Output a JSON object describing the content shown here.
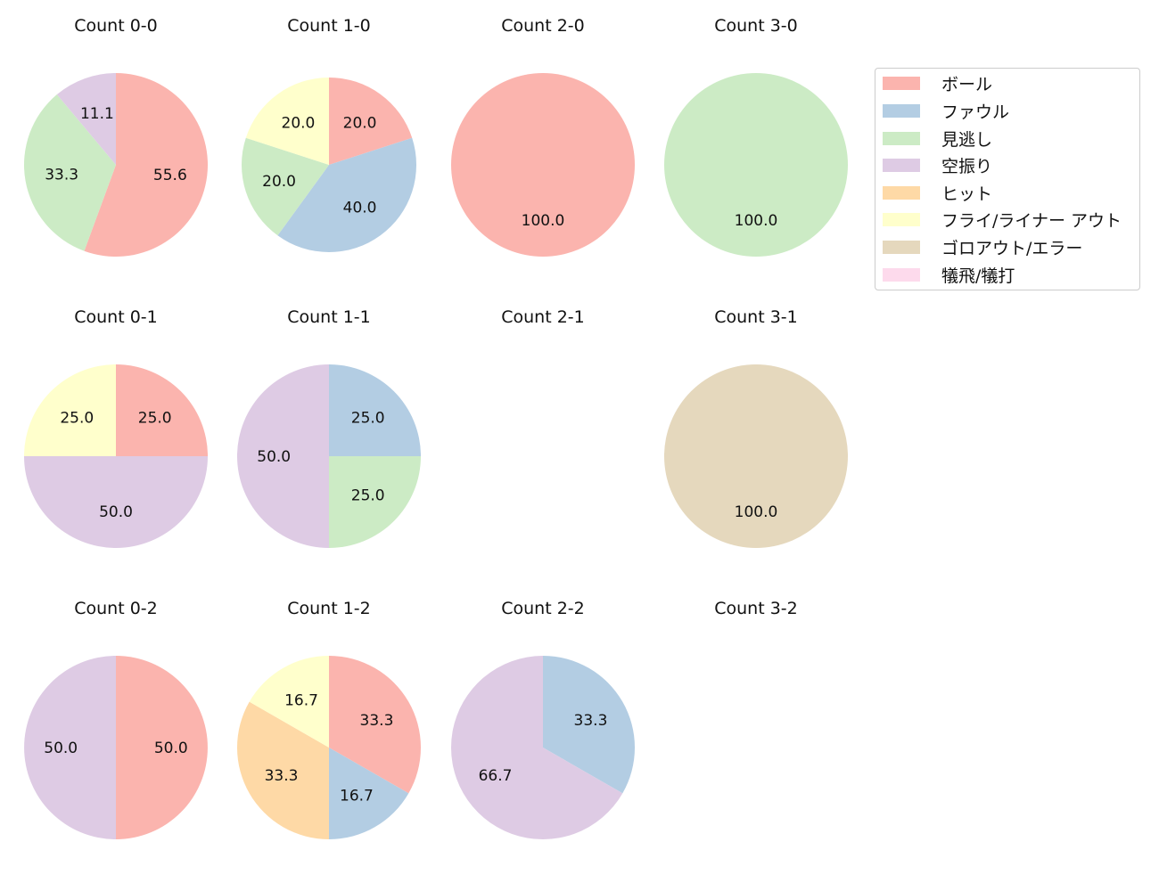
{
  "chart_data": {
    "type": "pie",
    "legend": {
      "position": "upper right",
      "entries": [
        {
          "label": "ボール",
          "color": "#fbb4ae"
        },
        {
          "label": "ファウル",
          "color": "#b3cde3"
        },
        {
          "label": "見逃し",
          "color": "#ccebc5"
        },
        {
          "label": "空振り",
          "color": "#decbe4"
        },
        {
          "label": "ヒット",
          "color": "#fed9a6"
        },
        {
          "label": "フライ/ライナー アウト",
          "color": "#ffffcc"
        },
        {
          "label": "ゴロアウト/エラー",
          "color": "#e5d8bd"
        },
        {
          "label": "犠飛/犠打",
          "color": "#fddaec"
        }
      ]
    },
    "charts": [
      {
        "title": "Count 0-0",
        "slices": [
          {
            "label": "ボール",
            "value": 55.6
          },
          {
            "label": "見逃し",
            "value": 33.3
          },
          {
            "label": "空振り",
            "value": 11.1
          }
        ]
      },
      {
        "title": "Count 1-0",
        "slices": [
          {
            "label": "ボール",
            "value": 20.0
          },
          {
            "label": "ファウル",
            "value": 40.0
          },
          {
            "label": "見逃し",
            "value": 20.0
          },
          {
            "label": "フライ/ライナー アウト",
            "value": 20.0
          }
        ]
      },
      {
        "title": "Count 2-0",
        "slices": [
          {
            "label": "ボール",
            "value": 100.0
          }
        ]
      },
      {
        "title": "Count 3-0",
        "slices": [
          {
            "label": "見逃し",
            "value": 100.0
          }
        ]
      },
      {
        "title": "Count 0-1",
        "slices": [
          {
            "label": "ボール",
            "value": 25.0
          },
          {
            "label": "空振り",
            "value": 50.0
          },
          {
            "label": "フライ/ライナー アウト",
            "value": 25.0
          }
        ]
      },
      {
        "title": "Count 1-1",
        "slices": [
          {
            "label": "ファウル",
            "value": 25.0
          },
          {
            "label": "見逃し",
            "value": 25.0
          },
          {
            "label": "空振り",
            "value": 50.0
          }
        ]
      },
      {
        "title": "Count 2-1",
        "slices": []
      },
      {
        "title": "Count 3-1",
        "slices": [
          {
            "label": "ゴロアウト/エラー",
            "value": 100.0
          }
        ]
      },
      {
        "title": "Count 0-2",
        "slices": [
          {
            "label": "ボール",
            "value": 50.0
          },
          {
            "label": "空振り",
            "value": 50.0
          }
        ]
      },
      {
        "title": "Count 1-2",
        "slices": [
          {
            "label": "ボール",
            "value": 33.3
          },
          {
            "label": "ファウル",
            "value": 16.7
          },
          {
            "label": "ヒット",
            "value": 33.3
          },
          {
            "label": "フライ/ライナー アウト",
            "value": 16.7
          }
        ]
      },
      {
        "title": "Count 2-2",
        "slices": [
          {
            "label": "ファウル",
            "value": 33.3
          },
          {
            "label": "空振り",
            "value": 66.7
          }
        ]
      },
      {
        "title": "Count 3-2",
        "slices": []
      }
    ]
  }
}
